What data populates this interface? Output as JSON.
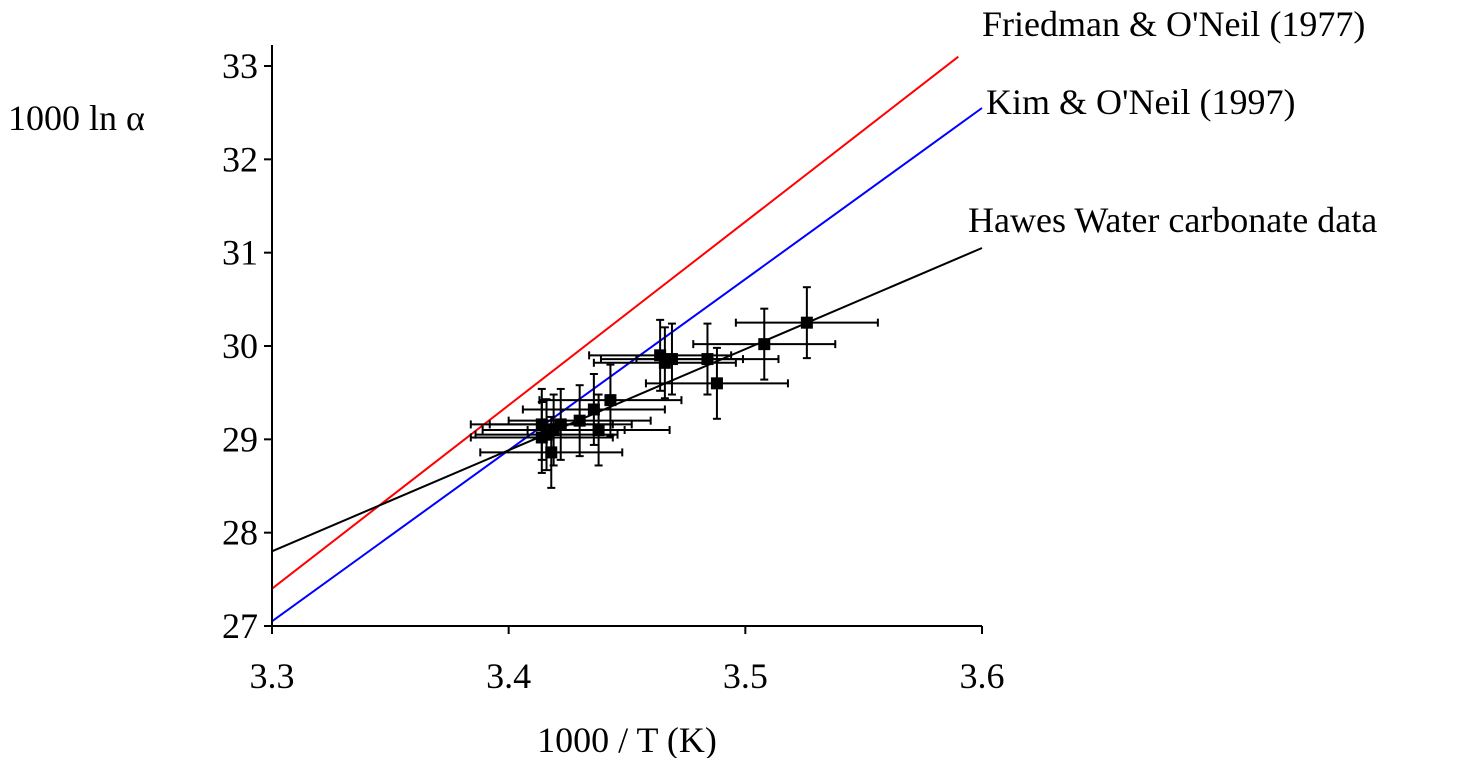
{
  "chart_data": {
    "type": "scatter",
    "xlabel": "1000 / T (K)",
    "ylabel": "1000 ln α",
    "xlim": [
      3.3,
      3.6
    ],
    "ylim": [
      27,
      33.2
    ],
    "xticks": [
      "3.3",
      "3.4",
      "3.5",
      "3.6"
    ],
    "yticks": [
      "27",
      "28",
      "29",
      "30",
      "31",
      "32",
      "33"
    ],
    "grid": false,
    "lines": [
      {
        "name": "Friedman & O'Neil (1977)",
        "color": "#ff0000",
        "x": [
          3.3,
          3.59
        ],
        "y": [
          27.4,
          33.1
        ]
      },
      {
        "name": "Kim & O'Neil (1997)",
        "color": "#0000ff",
        "x": [
          3.3,
          3.6
        ],
        "y": [
          27.05,
          32.55
        ]
      },
      {
        "name": "Hawes Water carbonate data",
        "color": "#000000",
        "x": [
          3.3,
          3.6
        ],
        "y": [
          27.8,
          31.05
        ]
      }
    ],
    "points": [
      {
        "x": 3.526,
        "y": 30.25,
        "xerr": 0.03,
        "yerr": 0.38
      },
      {
        "x": 3.508,
        "y": 30.02,
        "xerr": 0.03,
        "yerr": 0.38
      },
      {
        "x": 3.488,
        "y": 29.6,
        "xerr": 0.03,
        "yerr": 0.38
      },
      {
        "x": 3.484,
        "y": 29.86,
        "xerr": 0.03,
        "yerr": 0.38
      },
      {
        "x": 3.469,
        "y": 29.86,
        "xerr": 0.03,
        "yerr": 0.38
      },
      {
        "x": 3.466,
        "y": 29.82,
        "xerr": 0.03,
        "yerr": 0.38
      },
      {
        "x": 3.464,
        "y": 29.9,
        "xerr": 0.03,
        "yerr": 0.38
      },
      {
        "x": 3.443,
        "y": 29.42,
        "xerr": 0.03,
        "yerr": 0.38
      },
      {
        "x": 3.438,
        "y": 29.1,
        "xerr": 0.03,
        "yerr": 0.38
      },
      {
        "x": 3.436,
        "y": 29.32,
        "xerr": 0.03,
        "yerr": 0.38
      },
      {
        "x": 3.43,
        "y": 29.2,
        "xerr": 0.03,
        "yerr": 0.38
      },
      {
        "x": 3.422,
        "y": 29.16,
        "xerr": 0.03,
        "yerr": 0.38
      },
      {
        "x": 3.419,
        "y": 29.1,
        "xerr": 0.03,
        "yerr": 0.38
      },
      {
        "x": 3.418,
        "y": 28.86,
        "xerr": 0.03,
        "yerr": 0.38
      },
      {
        "x": 3.416,
        "y": 29.05,
        "xerr": 0.03,
        "yerr": 0.38
      },
      {
        "x": 3.414,
        "y": 29.16,
        "xerr": 0.03,
        "yerr": 0.38
      },
      {
        "x": 3.414,
        "y": 29.02,
        "xerr": 0.03,
        "yerr": 0.38
      }
    ]
  }
}
